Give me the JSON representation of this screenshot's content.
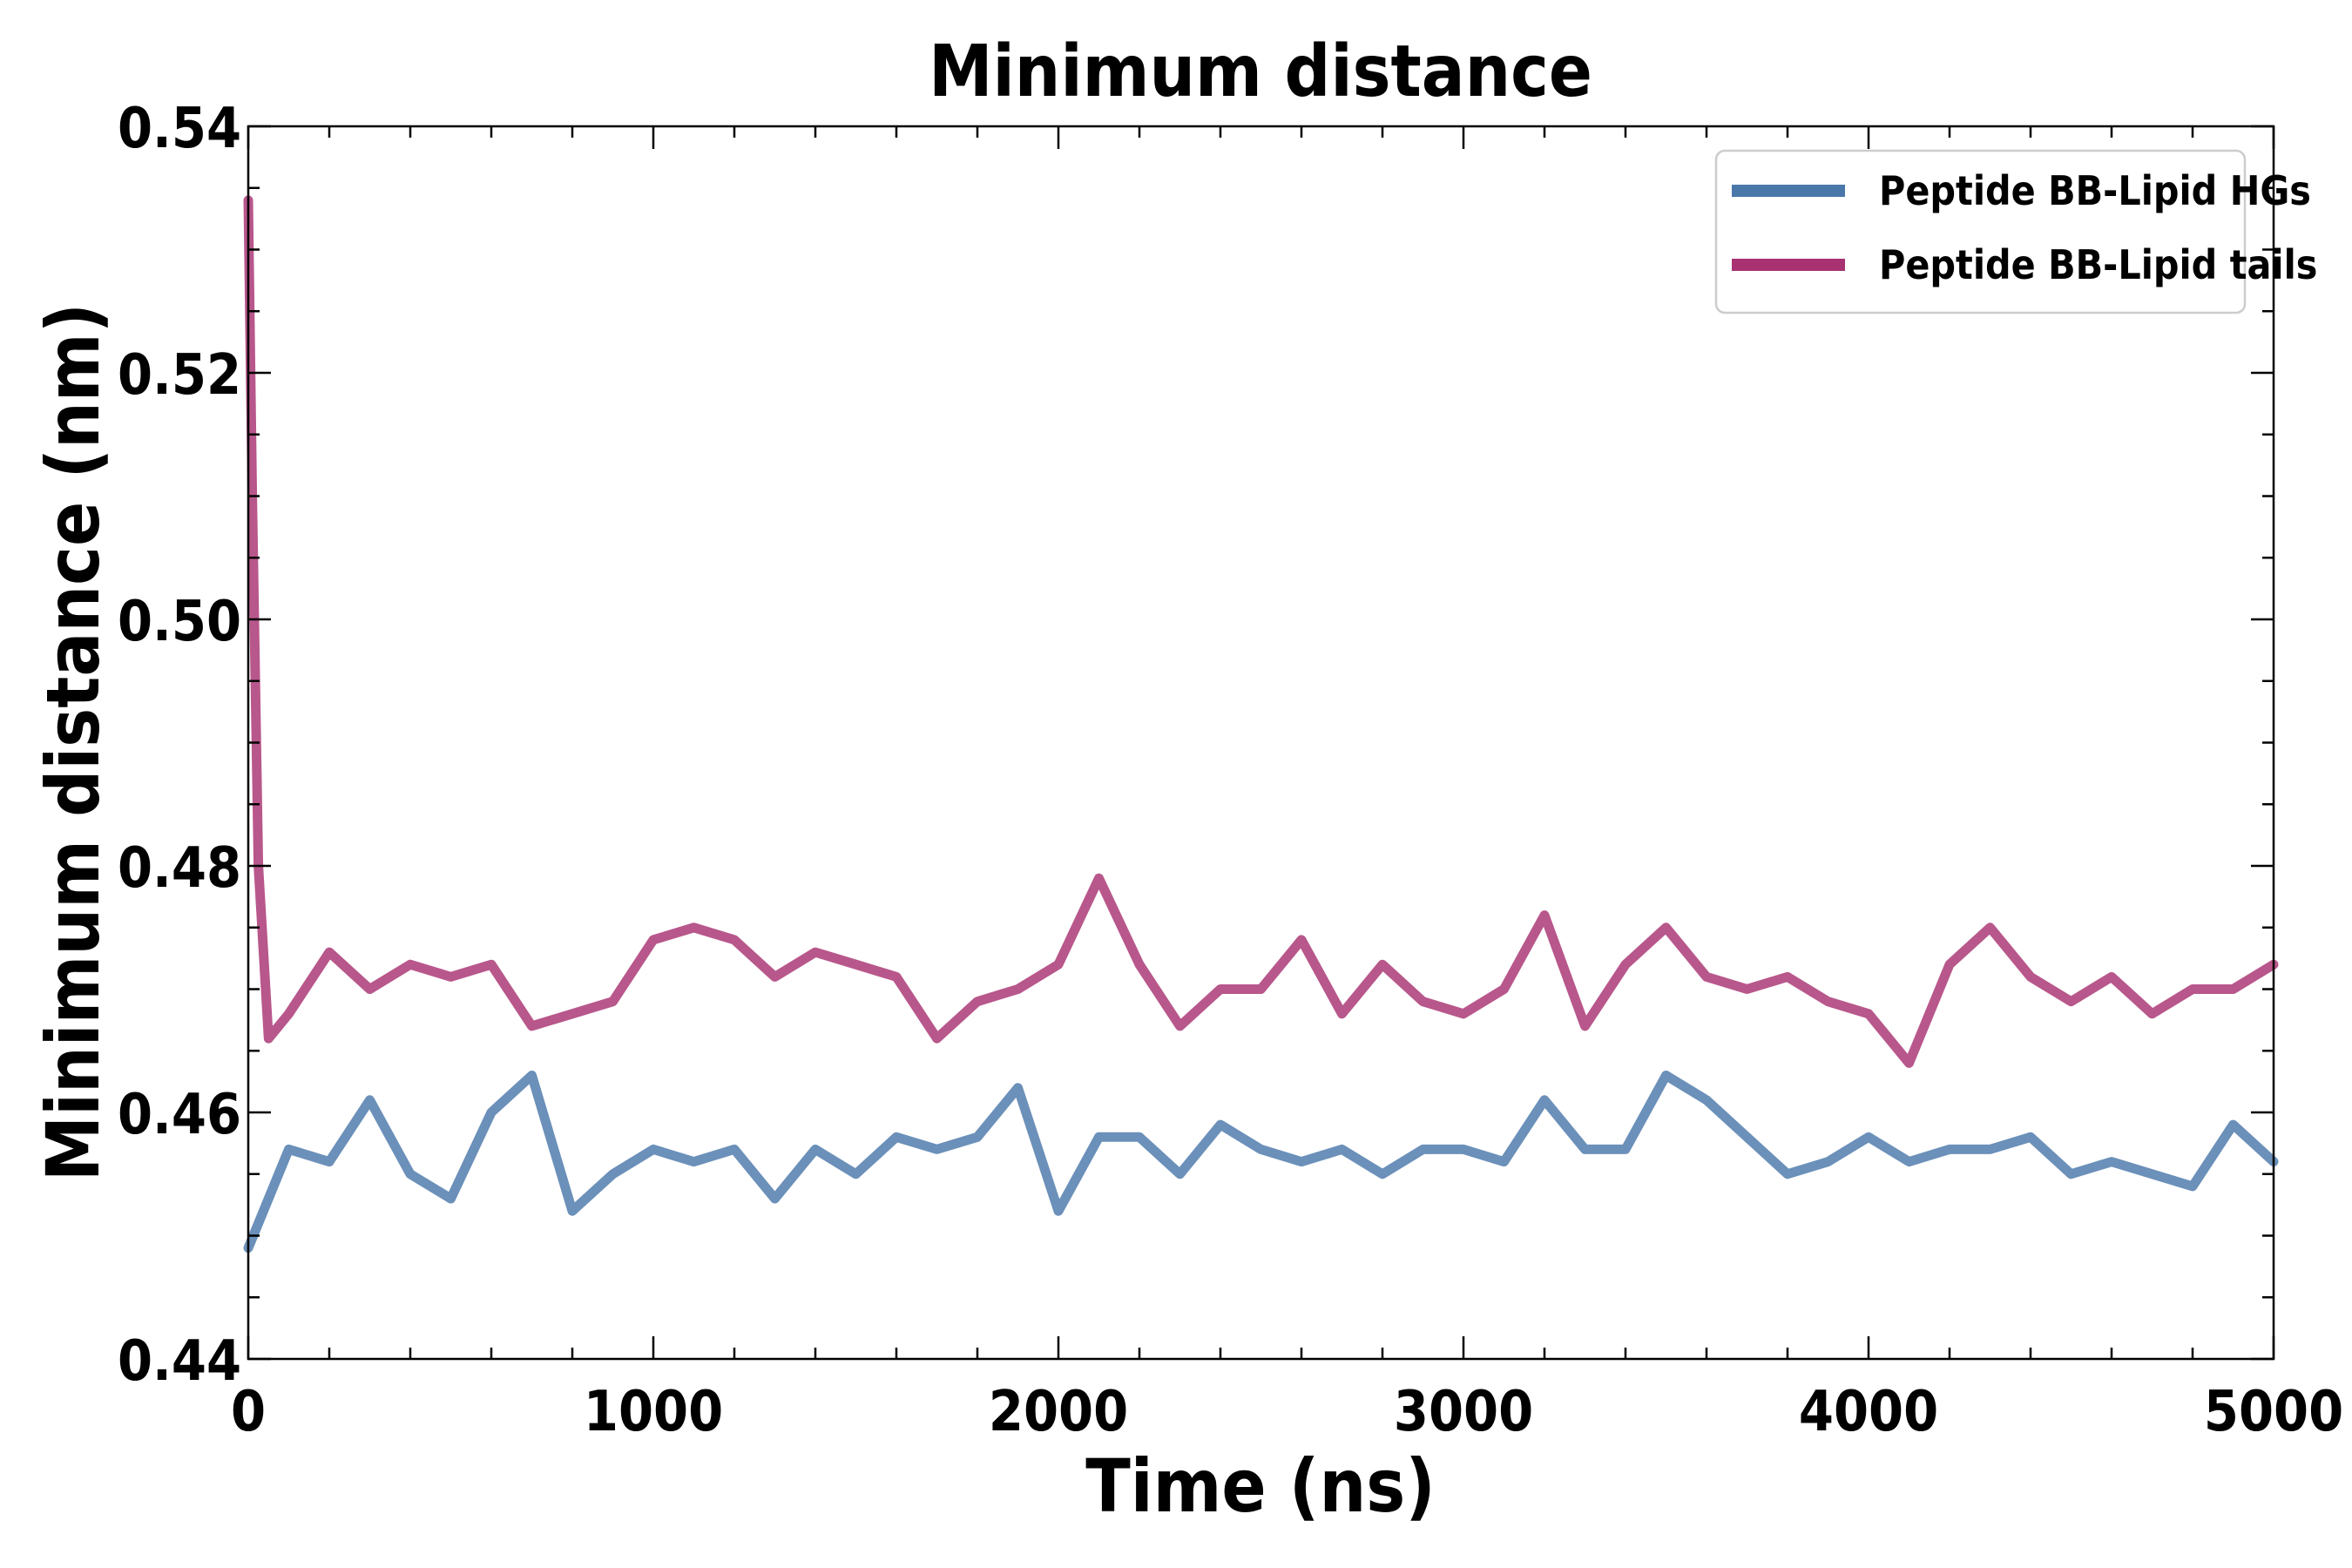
{
  "chart_data": {
    "type": "line",
    "title": "Minimum distance",
    "xlabel": "Time (ns)",
    "ylabel": "Minimum distance (nm)",
    "xlim": [
      0,
      5000
    ],
    "ylim": [
      0.44,
      0.54
    ],
    "xticks": [
      0,
      1000,
      2000,
      3000,
      4000,
      5000
    ],
    "xtick_labels": [
      "0",
      "1000",
      "2000",
      "3000",
      "4000",
      "5000"
    ],
    "yticks": [
      0.44,
      0.46,
      0.48,
      0.5,
      0.52,
      0.54
    ],
    "ytick_labels": [
      "0.44",
      "0.46",
      "0.48",
      "0.50",
      "0.52",
      "0.54"
    ],
    "grid": false,
    "legend_position": "top-right",
    "series": [
      {
        "name": "Peptide BB-Lipid HGs",
        "color": "#4a77aa",
        "x": [
          0,
          100,
          200,
          300,
          400,
          500,
          600,
          700,
          800,
          900,
          1000,
          1100,
          1200,
          1300,
          1400,
          1500,
          1600,
          1700,
          1800,
          1900,
          2000,
          2100,
          2200,
          2300,
          2400,
          2500,
          2600,
          2700,
          2800,
          2900,
          3000,
          3100,
          3200,
          3300,
          3400,
          3500,
          3600,
          3700,
          3800,
          3900,
          4000,
          4100,
          4200,
          4300,
          4400,
          4500,
          4600,
          4700,
          4800,
          4900,
          5000
        ],
        "values": [
          0.449,
          0.457,
          0.456,
          0.461,
          0.455,
          0.453,
          0.46,
          0.463,
          0.452,
          0.455,
          0.457,
          0.456,
          0.457,
          0.453,
          0.457,
          0.455,
          0.458,
          0.457,
          0.458,
          0.462,
          0.452,
          0.458,
          0.458,
          0.455,
          0.459,
          0.457,
          0.456,
          0.457,
          0.455,
          0.457,
          0.457,
          0.456,
          0.461,
          0.457,
          0.457,
          0.463,
          0.461,
          0.458,
          0.455,
          0.456,
          0.458,
          0.456,
          0.457,
          0.457,
          0.458,
          0.455,
          0.456,
          0.455,
          0.454,
          0.459,
          0.456
        ]
      },
      {
        "name": "Peptide BB-Lipid tails",
        "color": "#a83272",
        "x": [
          0,
          10,
          25,
          50,
          100,
          200,
          300,
          400,
          500,
          600,
          700,
          800,
          900,
          1000,
          1100,
          1200,
          1300,
          1400,
          1500,
          1600,
          1700,
          1800,
          1900,
          2000,
          2100,
          2200,
          2300,
          2400,
          2500,
          2600,
          2700,
          2800,
          2900,
          3000,
          3100,
          3200,
          3300,
          3400,
          3500,
          3600,
          3700,
          3800,
          3900,
          4000,
          4100,
          4200,
          4300,
          4400,
          4500,
          4600,
          4700,
          4800,
          4900,
          5000
        ],
        "values": [
          0.534,
          0.51,
          0.48,
          0.466,
          0.468,
          0.473,
          0.47,
          0.472,
          0.471,
          0.472,
          0.467,
          0.468,
          0.469,
          0.474,
          0.475,
          0.474,
          0.471,
          0.473,
          0.472,
          0.471,
          0.466,
          0.469,
          0.47,
          0.472,
          0.479,
          0.472,
          0.467,
          0.47,
          0.47,
          0.474,
          0.468,
          0.472,
          0.469,
          0.468,
          0.47,
          0.476,
          0.467,
          0.472,
          0.475,
          0.471,
          0.47,
          0.471,
          0.469,
          0.468,
          0.464,
          0.472,
          0.475,
          0.471,
          0.469,
          0.471,
          0.468,
          0.47,
          0.47,
          0.472
        ]
      }
    ]
  }
}
